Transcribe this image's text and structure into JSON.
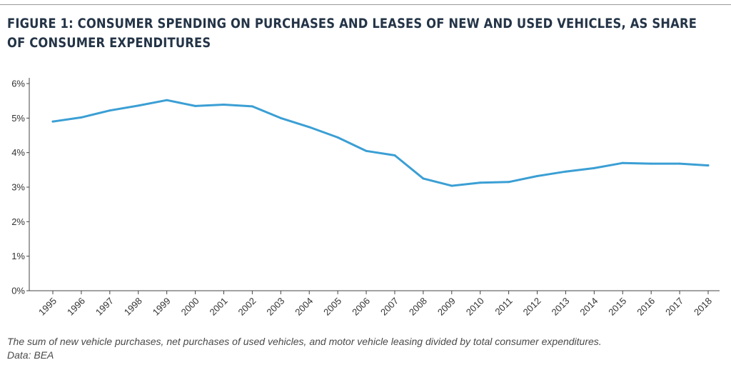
{
  "title": "FIGURE 1: CONSUMER SPENDING ON PURCHASES AND LEASES OF NEW AND USED VEHICLES, AS SHARE OF CONSUMER EXPENDITURES",
  "caption": {
    "description": "The sum of new vehicle purchases, net purchases of used vehicles, and motor vehicle leasing divided by total consumer expenditures.",
    "source": "Data: BEA"
  },
  "colors": {
    "line": "#3b9fd4",
    "drop_line": "#8fd0e8",
    "axis": "#444444",
    "text": "#333333"
  },
  "chart_data": {
    "type": "line",
    "x": [
      "1995",
      "1996",
      "1997",
      "1998",
      "1999",
      "2000",
      "2001",
      "2002",
      "2003",
      "2004",
      "2005",
      "2006",
      "2007",
      "2008",
      "2009",
      "2010",
      "2011",
      "2012",
      "2013",
      "2014",
      "2015",
      "2016",
      "2017",
      "2018"
    ],
    "values": [
      4.9,
      5.02,
      5.22,
      5.36,
      5.52,
      5.35,
      5.39,
      5.34,
      5.0,
      4.74,
      4.44,
      4.05,
      3.92,
      3.25,
      3.04,
      3.13,
      3.15,
      3.32,
      3.45,
      3.55,
      3.7,
      3.68,
      3.68,
      3.63
    ],
    "ylim": [
      0,
      6
    ],
    "yticks": [
      0,
      1,
      2,
      3,
      4,
      5,
      6
    ],
    "ytick_labels": [
      "0%",
      "1%",
      "2%",
      "3%",
      "4%",
      "5%",
      "6%"
    ],
    "xlabel": "",
    "ylabel": "",
    "grid": false,
    "drop_lines": true
  }
}
